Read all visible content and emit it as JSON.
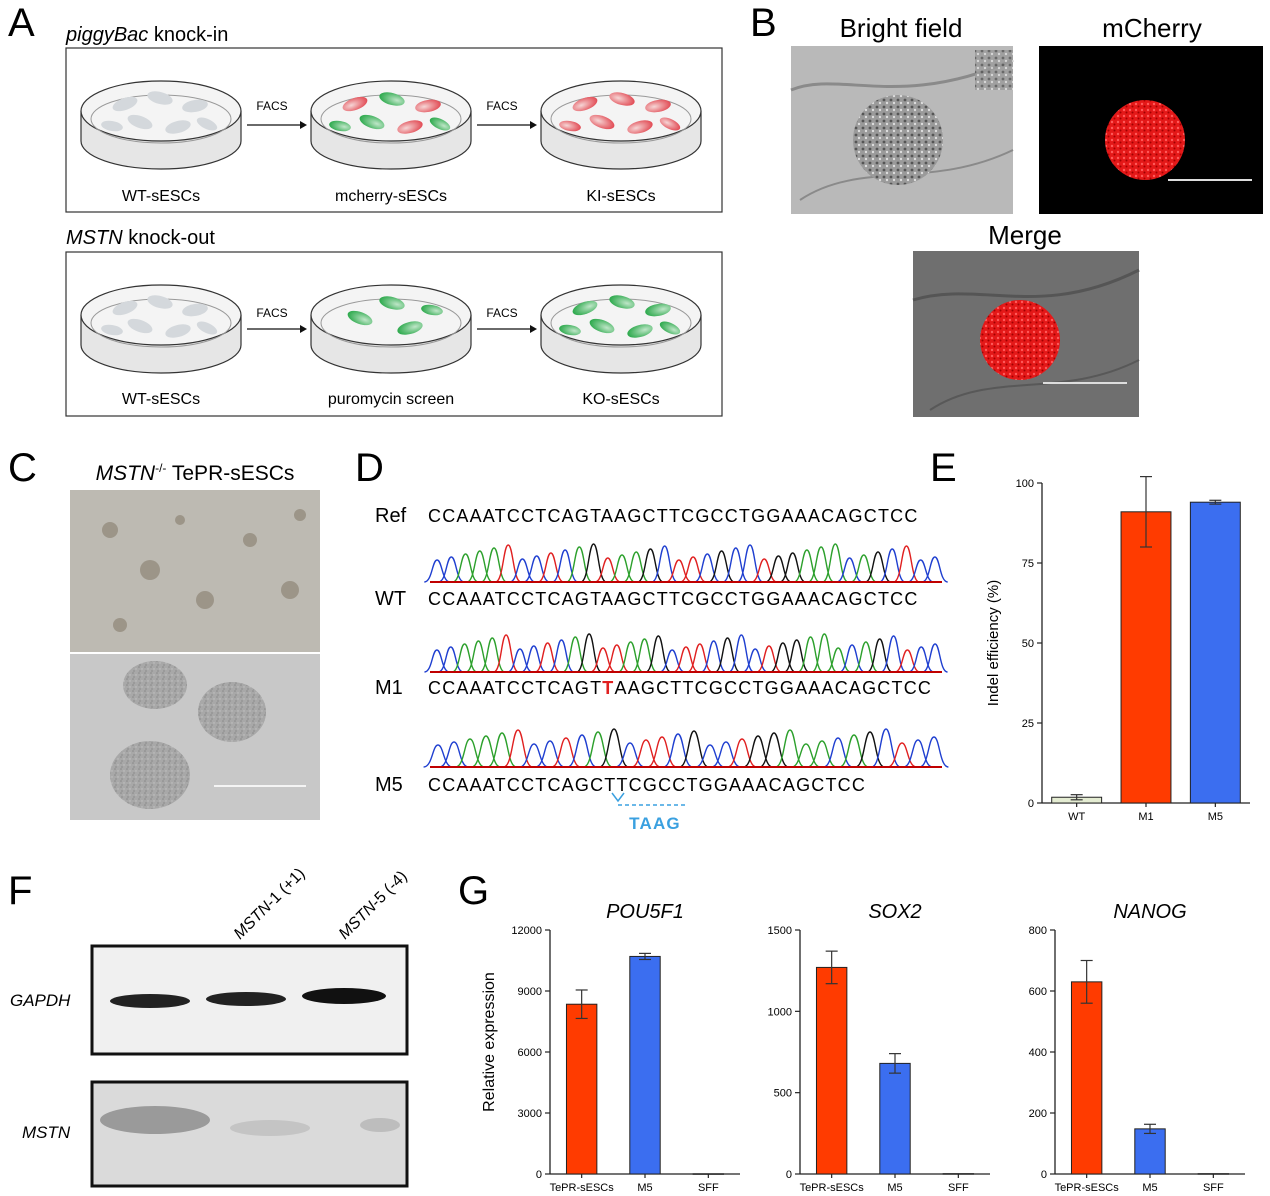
{
  "panel_letters": {
    "a": "A",
    "b": "B",
    "c": "C",
    "d": "D",
    "e": "E",
    "f": "F",
    "g": "G"
  },
  "panel_a": {
    "knockin_title_italic": "piggyBac",
    "knockin_title_rest": " knock-in",
    "knockin_arrow1": "FACS",
    "knockin_arrow2": "FACS",
    "knockin_labels": [
      "WT-sESCs",
      "mcherry-sESCs",
      "KI-sESCs"
    ],
    "knockout_title_italic": "MSTN",
    "knockout_title_rest": " knock-out",
    "knockout_arrow1": "FACS",
    "knockout_arrow2": "FACS",
    "knockout_labels": [
      "WT-sESCs",
      "puromycin screen",
      "KO-sESCs"
    ]
  },
  "panel_b": {
    "bright_field": "Bright field",
    "mcherry": "mCherry",
    "merge": "Merge"
  },
  "panel_c": {
    "title_italic": "MSTN",
    "title_sup": "-/-",
    "title_rest": " TePR-sESCs"
  },
  "panel_d": {
    "rows": [
      {
        "label": "Ref",
        "sequence": "CCAAATCCTCAGTAAGCTTCGCCTGGAAACAGCTCC"
      },
      {
        "label": "WT",
        "sequence": "CCAAATCCTCAGTAAGCTTCGCCTGGAAACAGCTCC"
      },
      {
        "label": "M1",
        "seq_before": "CCAAATCCTCAGT",
        "seq_insert": "T",
        "seq_after": "AAGCTTCGCCTGGAAACAGCTCC"
      },
      {
        "label": "M5",
        "sequence": "CCAAATCCTCAGCTTCGCCTGGAAACAGCTCC"
      }
    ],
    "deletion_label": "TAAG",
    "colors": {
      "A": "#2ca02c",
      "C": "#1f3fd0",
      "G": "#111111",
      "T": "#e02020",
      "insert": "#e02020",
      "deletion": "#3aa0e0"
    }
  },
  "panel_f": {
    "lane_labels": [
      {
        "italic": "MSTN",
        "rest": "-1 (+1)"
      },
      {
        "italic": "MSTN",
        "rest": "-5 (-4)"
      }
    ],
    "row_labels": [
      "GAPDH",
      "MSTN"
    ]
  },
  "chart_data": [
    {
      "panel": "E",
      "type": "bar",
      "categories": [
        "WT",
        "M1",
        "M5"
      ],
      "values": [
        1.8,
        91,
        94
      ],
      "errors": [
        0.8,
        11,
        0.6
      ],
      "colors": [
        "#e4ecd2",
        "#ff3b00",
        "#3b6ef0"
      ],
      "title": "",
      "xlabel": "",
      "ylabel": "Indel efficiency (%)",
      "ylim": [
        0,
        100
      ],
      "yticks": [
        0,
        25,
        50,
        75,
        100
      ]
    },
    {
      "panel": "G",
      "type": "bar",
      "title": "POU5F1",
      "categories": [
        "TePR-sESCs",
        "M5",
        "SFF"
      ],
      "values": [
        8350,
        10700,
        10
      ],
      "errors": [
        700,
        150,
        0
      ],
      "colors": [
        "#ff3b00",
        "#3b6ef0",
        "#3b6ef0"
      ],
      "ylabel": "Relative expression",
      "ylim": [
        0,
        12000
      ],
      "yticks": [
        0,
        3000,
        6000,
        9000,
        12000
      ]
    },
    {
      "panel": "G",
      "type": "bar",
      "title": "SOX2",
      "categories": [
        "TePR-sESCs",
        "M5",
        "SFF"
      ],
      "values": [
        1270,
        680,
        2
      ],
      "errors": [
        100,
        60,
        0
      ],
      "colors": [
        "#ff3b00",
        "#3b6ef0",
        "#3b6ef0"
      ],
      "ylabel": "",
      "ylim": [
        0,
        1500
      ],
      "yticks": [
        0,
        500,
        1000,
        1500
      ]
    },
    {
      "panel": "G",
      "type": "bar",
      "title": "NANOG",
      "categories": [
        "TePR-sESCs",
        "M5",
        "SFF"
      ],
      "values": [
        630,
        148,
        1
      ],
      "errors": [
        70,
        15,
        0
      ],
      "colors": [
        "#ff3b00",
        "#3b6ef0",
        "#3b6ef0"
      ],
      "ylabel": "",
      "ylim": [
        0,
        800
      ],
      "yticks": [
        0,
        200,
        400,
        600,
        800
      ]
    }
  ]
}
